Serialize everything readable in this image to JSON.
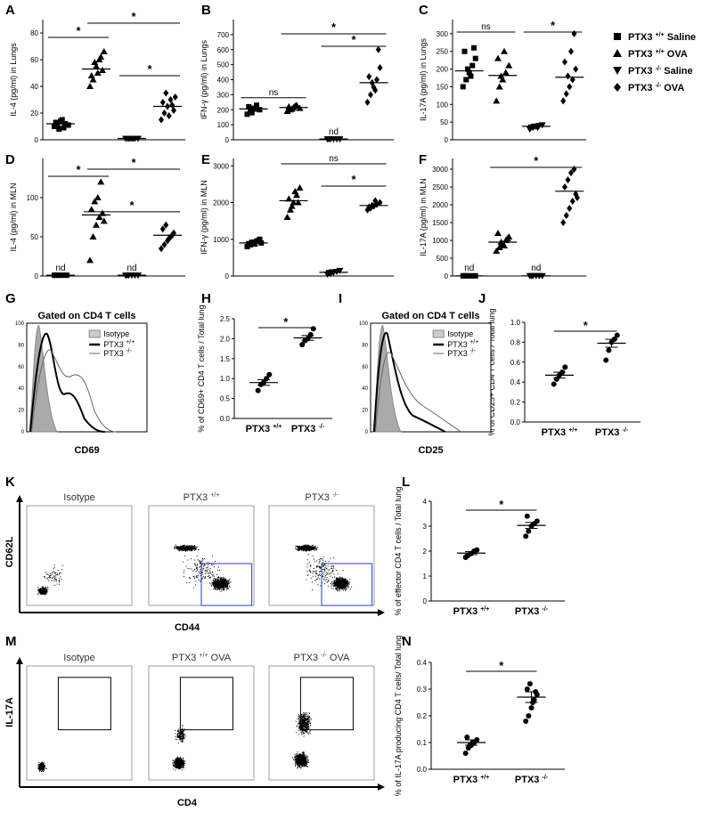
{
  "legend": [
    {
      "label": "PTX3 +/+ Saline",
      "shape": "square"
    },
    {
      "label": "PTX3 +/+ OVA",
      "shape": "triangle"
    },
    {
      "label": "PTX3 -/- Saline",
      "shape": "invtriangle"
    },
    {
      "label": "PTX3 -/- OVA",
      "shape": "diamond"
    }
  ],
  "chart_data": [
    {
      "id": "A",
      "type": "scatter",
      "ylabel": "IL-4 (pg/ml) in Lungs",
      "ylim": [
        0,
        90
      ],
      "yticks": [
        0,
        20,
        40,
        60,
        80
      ],
      "groups": [
        {
          "shape": "square",
          "values": [
            10,
            12,
            14,
            9,
            11,
            13,
            8,
            15,
            12,
            11
          ],
          "mean": 12
        },
        {
          "shape": "triangle",
          "values": [
            40,
            45,
            55,
            60,
            52,
            48,
            58,
            50,
            62,
            66
          ],
          "mean": 53
        },
        {
          "shape": "invtriangle",
          "values": [
            1,
            1,
            1,
            1,
            1,
            1,
            1,
            1
          ],
          "mean": 1
        },
        {
          "shape": "diamond",
          "values": [
            15,
            20,
            25,
            30,
            22,
            28,
            35,
            18,
            26,
            32
          ],
          "mean": 25
        }
      ],
      "sig": [
        {
          "g1": 0,
          "g2": 1,
          "label": "*"
        },
        {
          "g1": 1,
          "g2": 3,
          "label": "*"
        },
        {
          "g1": 2,
          "g2": 3,
          "label": "*"
        }
      ],
      "nd": []
    },
    {
      "id": "B",
      "type": "scatter",
      "ylabel": "IFN-γ (pg/ml) in Lungs",
      "ylim": [
        0,
        800
      ],
      "yticks": [
        0,
        100,
        200,
        300,
        400,
        500,
        600,
        700
      ],
      "groups": [
        {
          "shape": "square",
          "values": [
            170,
            190,
            210,
            230,
            200,
            220,
            180,
            205
          ],
          "mean": 205
        },
        {
          "shape": "triangle",
          "values": [
            190,
            200,
            215,
            230,
            210,
            220,
            205,
            225
          ],
          "mean": 215
        },
        {
          "shape": "invtriangle",
          "values": [
            5,
            5,
            5,
            5,
            5,
            5
          ],
          "mean": 5
        },
        {
          "shape": "diamond",
          "values": [
            250,
            300,
            350,
            400,
            480,
            420,
            380,
            330,
            600
          ],
          "mean": 380
        }
      ],
      "sig": [
        {
          "g1": 0,
          "g2": 1,
          "label": "ns"
        },
        {
          "g1": 1,
          "g2": 3,
          "label": "*"
        },
        {
          "g1": 2,
          "g2": 3,
          "label": "*"
        }
      ],
      "nd": [
        {
          "g": 2,
          "label": "nd"
        }
      ]
    },
    {
      "id": "C",
      "type": "scatter",
      "ylabel": "IL-17A (pg/ml) in Lungs",
      "ylim": [
        0,
        340
      ],
      "yticks": [
        0,
        50,
        100,
        150,
        200,
        250,
        300
      ],
      "groups": [
        {
          "shape": "square",
          "values": [
            150,
            170,
            190,
            210,
            230,
            250,
            200,
            180,
            260
          ],
          "mean": 195
        },
        {
          "shape": "triangle",
          "values": [
            110,
            150,
            170,
            190,
            210,
            230,
            180,
            250
          ],
          "mean": 182
        },
        {
          "shape": "invtriangle",
          "values": [
            30,
            35,
            38,
            40,
            42,
            36,
            38,
            35
          ],
          "mean": 38
        },
        {
          "shape": "diamond",
          "values": [
            110,
            130,
            150,
            170,
            200,
            220,
            180,
            250,
            300
          ],
          "mean": 177
        }
      ],
      "sig": [
        {
          "g1": 0,
          "g2": 1,
          "label": "ns"
        },
        {
          "g1": 2,
          "g2": 3,
          "label": "*"
        }
      ],
      "nd": []
    },
    {
      "id": "D",
      "type": "scatter",
      "ylabel": "IL-4 (pg/ml) in MLN",
      "ylim": [
        0,
        150
      ],
      "yticks": [
        0,
        50,
        100
      ],
      "groups": [
        {
          "shape": "square",
          "values": [
            1,
            1,
            1,
            1,
            1,
            1
          ],
          "mean": 1
        },
        {
          "shape": "triangle",
          "values": [
            20,
            50,
            65,
            75,
            80,
            85,
            95,
            100,
            120,
            70
          ],
          "mean": 78
        },
        {
          "shape": "invtriangle",
          "values": [
            1,
            1,
            1,
            1,
            1,
            1
          ],
          "mean": 1
        },
        {
          "shape": "diamond",
          "values": [
            35,
            40,
            45,
            50,
            55,
            60,
            65,
            48,
            52
          ],
          "mean": 52
        }
      ],
      "sig": [
        {
          "g1": 0,
          "g2": 1,
          "label": "*"
        },
        {
          "g1": 1,
          "g2": 3,
          "label": "*"
        },
        {
          "g1": 0,
          "g2": 3,
          "label": "*"
        }
      ],
      "nd": [
        {
          "g": 0,
          "label": "nd"
        },
        {
          "g": 2,
          "label": "nd"
        }
      ]
    },
    {
      "id": "E",
      "type": "scatter",
      "ylabel": "IFN-γ (pg/ml) in MLN",
      "ylim": [
        0,
        3200
      ],
      "yticks": [
        0,
        1000,
        2000,
        3000
      ],
      "groups": [
        {
          "shape": "square",
          "values": [
            800,
            850,
            900,
            950,
            1000,
            880,
            920,
            870,
            960,
            900
          ],
          "mean": 900
        },
        {
          "shape": "triangle",
          "values": [
            1600,
            1800,
            2000,
            2200,
            2400,
            2100,
            1900,
            2300,
            2000
          ],
          "mean": 2050
        },
        {
          "shape": "invtriangle",
          "values": [
            50,
            80,
            100,
            120,
            150,
            90,
            110
          ],
          "mean": 100
        },
        {
          "shape": "diamond",
          "values": [
            1800,
            1850,
            1900,
            1950,
            2000,
            1880,
            1920,
            2050
          ],
          "mean": 1920
        }
      ],
      "sig": [
        {
          "g1": 1,
          "g2": 3,
          "label": "ns"
        },
        {
          "g1": 2,
          "g2": 3,
          "label": "*"
        }
      ],
      "nd": []
    },
    {
      "id": "F",
      "type": "scatter",
      "ylabel": "IL-17A (pg/ml) in MLN",
      "ylim": [
        0,
        3300
      ],
      "yticks": [
        0,
        500,
        1000,
        1500,
        2000,
        2500,
        3000
      ],
      "groups": [
        {
          "shape": "square",
          "values": [
            5,
            5,
            5,
            5,
            5,
            5
          ],
          "mean": 5
        },
        {
          "shape": "triangle",
          "values": [
            700,
            800,
            900,
            1000,
            1100,
            1200,
            950,
            850,
            1050
          ],
          "mean": 950
        },
        {
          "shape": "invtriangle",
          "values": [
            5,
            5,
            5,
            5,
            5,
            5
          ],
          "mean": 5
        },
        {
          "shape": "diamond",
          "values": [
            1500,
            1700,
            1900,
            2100,
            2300,
            2500,
            2700,
            2900,
            3000,
            2200
          ],
          "mean": 2380
        }
      ],
      "sig": [
        {
          "g1": 1,
          "g2": 3,
          "label": "*"
        }
      ],
      "nd": [
        {
          "g": 0,
          "label": "nd"
        },
        {
          "g": 2,
          "label": "nd"
        }
      ]
    },
    {
      "id": "H",
      "type": "scatter",
      "ylabel": "% of CD69+ CD4 T cells / Total lung",
      "ylim": [
        0,
        2.5
      ],
      "yticks": [
        0,
        0.5,
        1.0,
        1.5,
        2.0,
        2.5
      ],
      "categories": [
        "PTX3 +/+",
        "PTX3 -/-"
      ],
      "groups": [
        {
          "values": [
            0.7,
            0.85,
            0.9,
            1.0,
            1.1
          ],
          "mean": 0.9,
          "sem": 0.07
        },
        {
          "values": [
            1.85,
            1.95,
            2.0,
            2.1,
            2.25
          ],
          "mean": 2.02,
          "sem": 0.06
        }
      ],
      "sig": [
        {
          "g1": 0,
          "g2": 1,
          "label": "*"
        }
      ]
    },
    {
      "id": "J",
      "type": "scatter",
      "ylabel": "% of CD25+ CD4 T cells / Total lung",
      "ylim": [
        0,
        1.0
      ],
      "yticks": [
        0,
        0.2,
        0.4,
        0.6,
        0.8,
        1.0
      ],
      "categories": [
        "PTX3 +/+",
        "PTX3 -/-"
      ],
      "groups": [
        {
          "values": [
            0.38,
            0.43,
            0.47,
            0.5,
            0.55
          ],
          "mean": 0.47,
          "sem": 0.03
        },
        {
          "values": [
            0.62,
            0.72,
            0.8,
            0.83,
            0.87
          ],
          "mean": 0.79,
          "sem": 0.04
        }
      ],
      "sig": [
        {
          "g1": 0,
          "g2": 1,
          "label": "*"
        }
      ]
    },
    {
      "id": "L",
      "type": "scatter",
      "ylabel": "% of effector CD4 T cells / Total lung",
      "ylim": [
        0,
        4
      ],
      "yticks": [
        0,
        1,
        2,
        3,
        4
      ],
      "categories": [
        "PTX3 +/+",
        "PTX3 -/-"
      ],
      "groups": [
        {
          "values": [
            1.75,
            1.85,
            1.9,
            2.0,
            2.05,
            1.8
          ],
          "mean": 1.92,
          "sem": 0.06
        },
        {
          "values": [
            2.6,
            2.8,
            3.0,
            3.1,
            3.2,
            3.4
          ],
          "mean": 3.03,
          "sem": 0.12
        }
      ],
      "sig": [
        {
          "g1": 0,
          "g2": 1,
          "label": "*"
        }
      ]
    },
    {
      "id": "N",
      "type": "scatter",
      "ylabel": "% of IL-17A producing CD4 T cells/ Total lung",
      "ylim": [
        0,
        0.4
      ],
      "yticks": [
        0,
        0.1,
        0.2,
        0.3,
        0.4
      ],
      "categories": [
        "PTX3 +/+",
        "PTX3 -/-"
      ],
      "groups": [
        {
          "values": [
            0.06,
            0.08,
            0.09,
            0.1,
            0.11,
            0.12,
            0.09,
            0.1
          ],
          "mean": 0.1,
          "sem": 0.01
        },
        {
          "values": [
            0.18,
            0.2,
            0.23,
            0.26,
            0.28,
            0.3,
            0.32,
            0.25,
            0.29
          ],
          "mean": 0.27,
          "sem": 0.02
        }
      ],
      "sig": [
        {
          "g1": 0,
          "g2": 1,
          "label": "*"
        }
      ]
    }
  ],
  "flow": {
    "G": {
      "title": "Gated on CD4 T cells",
      "xlabel": "CD69",
      "legend": [
        "Isotype",
        "PTX3 +/+",
        "PTX3 -/-"
      ]
    },
    "I": {
      "title": "Gated on CD4 T cells",
      "xlabel": "CD25",
      "legend": [
        "Isotype",
        "PTX3 +/+",
        "PTX3 -/-"
      ]
    },
    "K": {
      "names": [
        "Isotype",
        "PTX3 +/+",
        "PTX3 -/-"
      ],
      "xlabel": "CD44",
      "ylabel": "CD62L"
    },
    "M": {
      "names": [
        "Isotype",
        "PTX3 +/+ OVA",
        "PTX3 -/- OVA"
      ],
      "xlabel": "CD4",
      "ylabel": "IL-17A"
    }
  },
  "panel_letters": [
    "A",
    "B",
    "C",
    "D",
    "E",
    "F",
    "G",
    "H",
    "I",
    "J",
    "K",
    "L",
    "M",
    "N"
  ]
}
